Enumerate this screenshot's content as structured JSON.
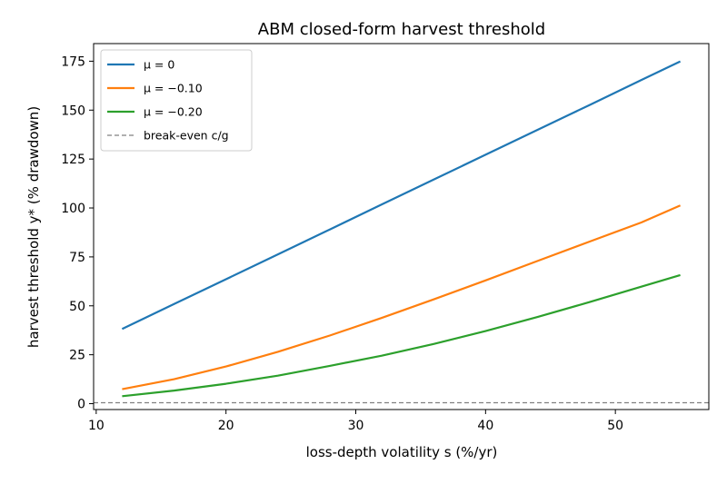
{
  "chart_data": {
    "type": "line",
    "title": "ABM closed-form harvest threshold",
    "xlabel": "loss-depth volatility s (%/yr)",
    "ylabel": "harvest threshold y* (% drawdown)",
    "xlim": [
      9.8,
      57.2
    ],
    "ylim": [
      -3,
      184
    ],
    "xticks": [
      10,
      20,
      30,
      40,
      50
    ],
    "yticks": [
      0,
      25,
      50,
      75,
      100,
      125,
      150,
      175
    ],
    "grid": false,
    "legend_position": "top-left",
    "series": [
      {
        "name": "μ = 0",
        "color": "#1f77b4",
        "x": [
          12,
          16,
          20,
          24,
          28,
          32,
          36,
          40,
          44,
          48,
          52,
          55
        ],
        "y": [
          38.2,
          50.9,
          63.6,
          76.3,
          89.0,
          101.8,
          114.5,
          127.2,
          139.9,
          152.6,
          165.4,
          174.9
        ]
      },
      {
        "name": "μ = −0.10",
        "color": "#ff7f0e",
        "x": [
          12,
          16,
          20,
          24,
          28,
          32,
          36,
          40,
          44,
          48,
          52,
          55
        ],
        "y": [
          7.4,
          12.5,
          19.0,
          26.5,
          34.8,
          43.8,
          53.3,
          63.0,
          72.9,
          82.8,
          92.6,
          101.3
        ]
      },
      {
        "name": "μ = −0.20",
        "color": "#2ca02c",
        "x": [
          12,
          16,
          20,
          24,
          28,
          32,
          36,
          40,
          44,
          48,
          52,
          55
        ],
        "y": [
          3.8,
          6.7,
          10.2,
          14.3,
          19.3,
          24.5,
          30.5,
          37.1,
          44.3,
          51.9,
          59.8,
          65.7
        ]
      },
      {
        "name": "break-even c/g",
        "color": "#808080",
        "dashed": true,
        "x": [
          9.8,
          57.2
        ],
        "y": [
          0.5,
          0.5
        ]
      }
    ]
  }
}
